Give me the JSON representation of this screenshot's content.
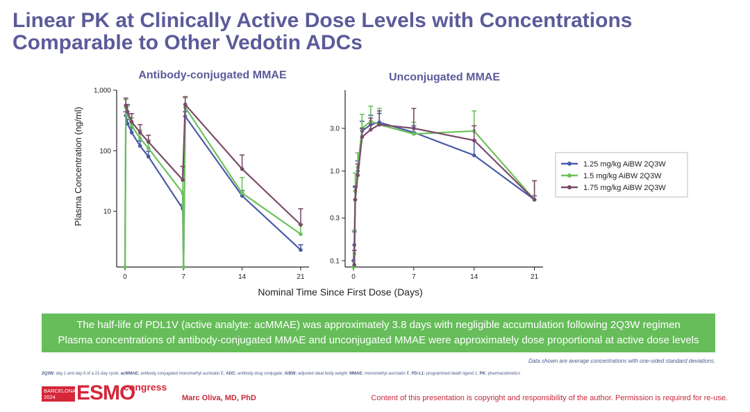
{
  "slide": {
    "title": "Linear PK at Clinically Active Dose Levels with Concentrations Comparable to Other Vedotin ADCs",
    "shared_xlabel": "Nominal Time Since First Dose (Days)",
    "shared_ylabel": "Plasma Concentration (ng/ml)",
    "findings": [
      "The half-life of PDL1V (active analyte: acMMAE) was approximately 3.8 days with negligible accumulation following 2Q3W regimen",
      "Plasma concentrations of antibody-conjugated MMAE and unconjugated MMAE were approximately dose proportional at active dose levels"
    ],
    "note": "Data shown are average concentrations with one-sided standard deviations.",
    "abbreviations": [
      {
        "term": "2Q3W:",
        "def": " day 1 and day 8 of a 21-day cycle; "
      },
      {
        "term": "acMMAE:",
        "def": " antibody conjugated monomethyl auristatin E; "
      },
      {
        "term": "ADC:",
        "def": " antibody drug conjugate; "
      },
      {
        "term": "AiBW:",
        "def": " adjusted ideal body weight; "
      },
      {
        "term": "MMAE:",
        "def": " monomethyl auristatin E; "
      },
      {
        "term": "PD-L1:",
        "def": " programmed death ligand 1; "
      },
      {
        "term": "PK:",
        "def": " pharmacokinetics"
      }
    ],
    "logo": {
      "city": "BARCELONA",
      "year": "2024",
      "brand": "ESMO",
      "suffix": "congress"
    },
    "presenter": "Marc Oliva, MD, PhD",
    "copyright": "Content of this presentation is copyright and responsibility of the author. Permission is required for re-use."
  },
  "colors": {
    "series_125": "#4a5aa8",
    "series_15": "#6cc15a",
    "series_175": "#7a4a6a",
    "title": "#5b5b9a",
    "green_box": "#66bd5a",
    "accent_red": "#c8283a"
  },
  "chart_data": [
    {
      "type": "line",
      "title": "Antibody-conjugated MMAE",
      "ylabel": "Plasma Concentration (ng/ml)",
      "xlabel": "",
      "yscale": "log",
      "ylim": [
        1.2,
        1000
      ],
      "xlim": [
        0,
        22
      ],
      "xticks": [
        0,
        7,
        14,
        21
      ],
      "yticks": [
        10,
        100,
        1000
      ],
      "ytick_labels": [
        "10",
        "100",
        "1,000"
      ],
      "series": [
        {
          "name": "1.25 mg/kg AiBW 2Q3W",
          "x": [
            0,
            0.1,
            0.3,
            0.8,
            1.8,
            2.8,
            6.9,
            7,
            7.2,
            14,
            21
          ],
          "y": [
            1.2,
            380,
            280,
            200,
            120,
            80,
            11,
            1.2,
            370,
            18,
            2.3
          ],
          "err": [
            0,
            60,
            50,
            40,
            25,
            18,
            2,
            0,
            70,
            4,
            0.5
          ]
        },
        {
          "name": "1.5 mg/kg AiBW 2Q3W",
          "x": [
            0,
            0.1,
            0.3,
            0.8,
            1.8,
            2.8,
            6.9,
            7,
            7.2,
            14,
            21
          ],
          "y": [
            1.2,
            520,
            400,
            260,
            160,
            110,
            20,
            1.2,
            520,
            20,
            4.2
          ],
          "err": [
            0,
            180,
            150,
            90,
            60,
            40,
            35,
            0,
            230,
            16,
            1.8
          ]
        },
        {
          "name": "1.75 mg/kg AiBW 2Q3W",
          "x": [
            0.1,
            0.3,
            0.8,
            1.8,
            2.8,
            6.9,
            7.2,
            14,
            21
          ],
          "y": [
            560,
            440,
            300,
            200,
            140,
            33,
            580,
            50,
            6
          ],
          "err": [
            180,
            140,
            110,
            70,
            40,
            22,
            200,
            35,
            5
          ]
        }
      ]
    },
    {
      "type": "line",
      "title": "Unconjugated MMAE",
      "ylabel": "",
      "xlabel": "",
      "yscale": "log",
      "ylim": [
        0.085,
        8
      ],
      "xlim": [
        0,
        22
      ],
      "xticks": [
        0,
        7,
        14,
        21
      ],
      "yticks": [
        0.1,
        0.3,
        1.0,
        3.0
      ],
      "ytick_labels": [
        "0.1",
        "0.3",
        "1.0",
        "3.0"
      ],
      "series": [
        {
          "name": "1.25 mg/kg AiBW 2Q3W",
          "x": [
            0,
            0.1,
            0.2,
            0.5,
            1,
            2,
            3,
            7,
            14,
            21
          ],
          "y": [
            0.1,
            0.15,
            0.48,
            1.0,
            2.8,
            3.3,
            3.5,
            2.7,
            1.5,
            0.48
          ],
          "err": [
            0,
            0.06,
            0.18,
            0.3,
            0.8,
            0.9,
            0.9,
            0.5,
            0.7,
            0.05
          ]
        },
        {
          "name": "1.5 mg/kg AiBW 2Q3W",
          "x": [
            0,
            0.1,
            0.2,
            0.5,
            1,
            2,
            3,
            7,
            14,
            21
          ],
          "y": [
            0.085,
            0.12,
            0.6,
            1.1,
            3.0,
            3.6,
            3.3,
            2.6,
            2.8,
            0.48
          ],
          "err": [
            0,
            0.1,
            0.35,
            0.5,
            1.3,
            1.7,
            1.7,
            0.9,
            1.9,
            0.3
          ]
        },
        {
          "name": "1.75 mg/kg AiBW 2Q3W",
          "x": [
            0.1,
            0.2,
            0.5,
            1,
            2,
            3,
            7,
            14,
            21
          ],
          "y": [
            0.09,
            0.48,
            0.9,
            2.4,
            2.9,
            3.3,
            3.0,
            2.2,
            0.48
          ],
          "err": [
            0.04,
            0.2,
            0.3,
            0.6,
            1.0,
            1.4,
            2.0,
            1.0,
            0.3
          ]
        }
      ]
    }
  ]
}
